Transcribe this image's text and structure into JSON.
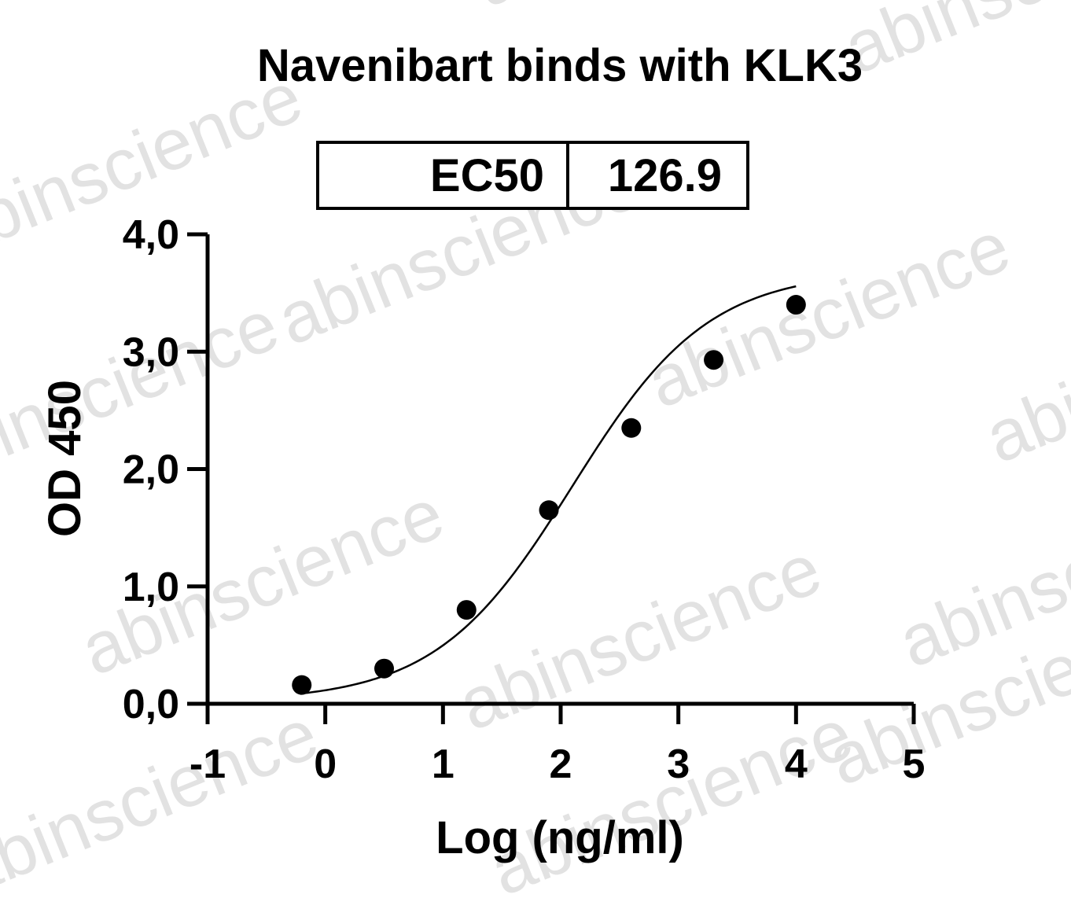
{
  "chart_data": {
    "type": "scatter",
    "title": "Navenibart binds with KLK3",
    "xlabel": "Log (ng/ml)",
    "ylabel": "OD 450",
    "xlim": [
      -1,
      5
    ],
    "ylim": [
      0,
      4
    ],
    "x_ticks": [
      -1,
      0,
      1,
      2,
      3,
      4,
      5
    ],
    "x_tick_labels": [
      "-1",
      "0",
      "1",
      "2",
      "3",
      "4",
      "5"
    ],
    "y_ticks": [
      0,
      1,
      2,
      3,
      4
    ],
    "y_tick_labels": [
      "0,0",
      "1,0",
      "2,0",
      "3,0",
      "4,0"
    ],
    "grid": false,
    "ec50_label": "EC50",
    "ec50_value": "126.9",
    "series": [
      {
        "x": [
          -0.2,
          0.5,
          1.2,
          1.9,
          2.6,
          3.3,
          4.0
        ],
        "y": [
          0.16,
          0.3,
          0.8,
          1.65,
          2.35,
          2.93,
          3.4
        ],
        "color": "#000000",
        "fit": "four-parameter-logistic"
      }
    ],
    "fit_curve": {
      "bottom": 0.02,
      "top": 3.69,
      "log_ec50": 2.1,
      "hill_slope": 0.75
    },
    "watermark": "abinscience"
  }
}
